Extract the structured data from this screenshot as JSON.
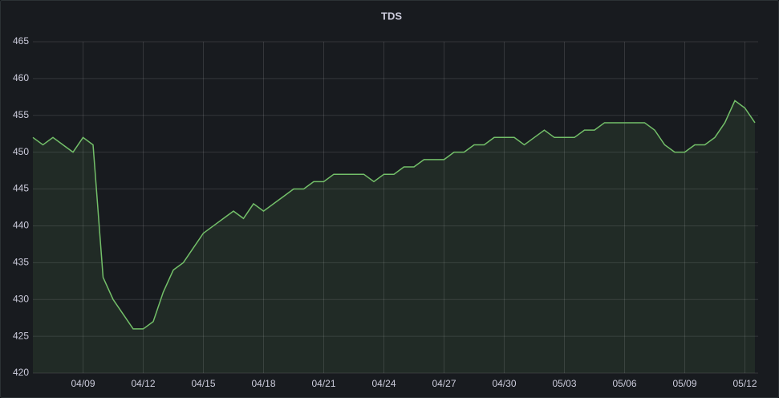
{
  "chart_data": {
    "type": "line",
    "title": "TDS",
    "categories": [
      null,
      null,
      null,
      null,
      null,
      "04/09",
      null,
      null,
      null,
      null,
      null,
      "04/12",
      null,
      null,
      null,
      null,
      null,
      "04/15",
      null,
      null,
      null,
      null,
      null,
      "04/18",
      null,
      null,
      null,
      null,
      null,
      "04/21",
      null,
      null,
      null,
      null,
      null,
      "04/24",
      null,
      null,
      null,
      null,
      null,
      "04/27",
      null,
      null,
      null,
      null,
      null,
      "04/30",
      null,
      null,
      null,
      null,
      null,
      "05/03",
      null,
      null,
      null,
      null,
      null,
      "05/06",
      null,
      null,
      null,
      null,
      null,
      "05/09",
      null,
      null,
      null,
      null,
      null,
      "05/12",
      null
    ],
    "series": [
      {
        "name": "TDS",
        "color": "#73bf69",
        "values": [
          452,
          451,
          452,
          451,
          450,
          452,
          451,
          433,
          430,
          428,
          426,
          426,
          427,
          431,
          434,
          435,
          437,
          439,
          440,
          441,
          442,
          441,
          443,
          442,
          443,
          444,
          445,
          445,
          446,
          446,
          447,
          447,
          447,
          447,
          446,
          447,
          447,
          448,
          448,
          449,
          449,
          449,
          450,
          450,
          451,
          451,
          452,
          452,
          452,
          451,
          452,
          453,
          452,
          452,
          452,
          453,
          453,
          454,
          454,
          454,
          454,
          454,
          453,
          451,
          450,
          450,
          451,
          451,
          452,
          454,
          457,
          456,
          454
        ]
      }
    ],
    "ylim": [
      420,
      465
    ],
    "yticks": [
      420,
      425,
      430,
      435,
      440,
      445,
      450,
      455,
      460,
      465
    ],
    "grid": true
  }
}
